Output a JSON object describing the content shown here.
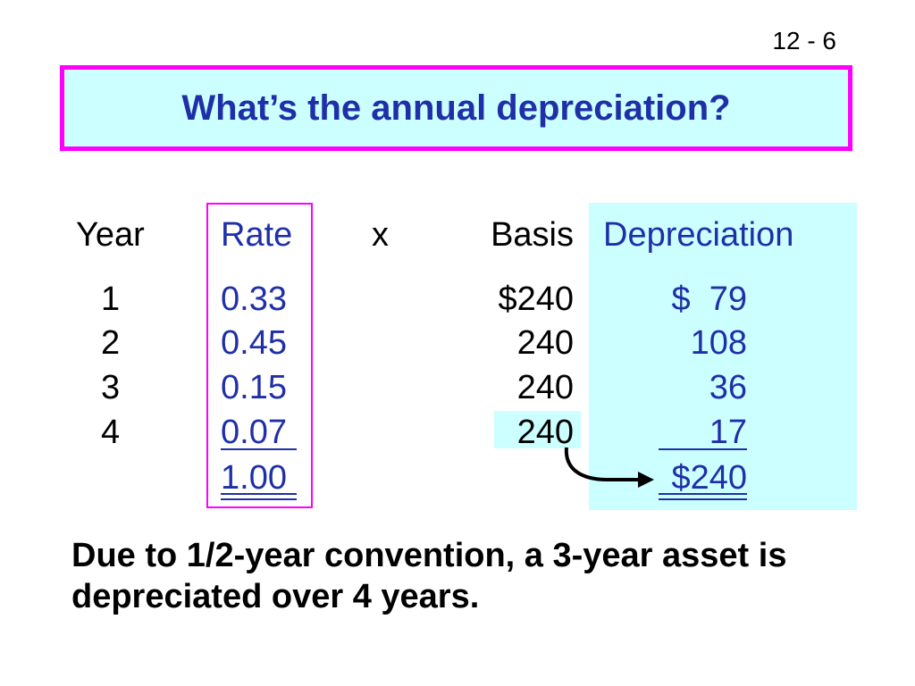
{
  "slide": {
    "page_number": "12 - 6",
    "title": "What’s the annual depreciation?",
    "footer_note": "Due to 1/2-year convention, a 3-year asset is depreciated over 4 years."
  },
  "table": {
    "headers": {
      "year": "Year",
      "rate": "Rate",
      "multiply": "x",
      "basis": "Basis",
      "depreciation": "Depreciation"
    },
    "rows": [
      {
        "year": "1",
        "rate": "0.33",
        "basis": "$240",
        "depreciation": "$  79"
      },
      {
        "year": "2",
        "rate": "0.45",
        "basis": "240",
        "depreciation": "108"
      },
      {
        "year": "3",
        "rate": "0.15",
        "basis": "240",
        "depreciation": "36"
      },
      {
        "year": "4",
        "rate": "0.07",
        "basis": "240",
        "depreciation": "17"
      }
    ],
    "totals": {
      "rate": "1.00",
      "depreciation": "$240"
    }
  },
  "colors": {
    "title_text": "#1f2fa8",
    "title_fill": "#ccffff",
    "title_border": "#ff00ff",
    "rate_border": "#ff00ff",
    "depreciation_fill": "#ccffff"
  }
}
